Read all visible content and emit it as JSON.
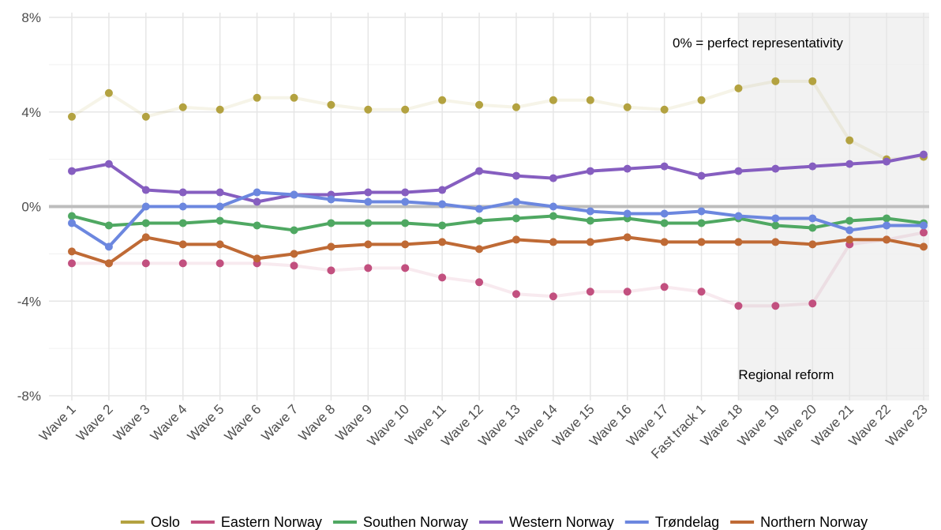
{
  "chart_data": {
    "type": "line",
    "categories": [
      "Wave 1",
      "Wave 2",
      "Wave 3",
      "Wave 4",
      "Wave 5",
      "Wave 6",
      "Wave 7",
      "Wave 8",
      "Wave 9",
      "Wave 10",
      "Wave 11",
      "Wave 12",
      "Wave 13",
      "Wave 14",
      "Wave 15",
      "Wave 16",
      "Wave 17",
      "Fast track 1",
      "Wave 18",
      "Wave 19",
      "Wave 20",
      "Wave 21",
      "Wave 22",
      "Wave 23"
    ],
    "ylim": [
      -8,
      8
    ],
    "yticks": [
      {
        "value": -8,
        "label": "-8%"
      },
      {
        "value": -4,
        "label": "-4%"
      },
      {
        "value": 0,
        "label": "0%"
      },
      {
        "value": 4,
        "label": "4%"
      },
      {
        "value": 8,
        "label": "8%"
      }
    ],
    "grid": true,
    "legend": "bottom",
    "shaded_region": {
      "label": "Regional reform",
      "from": "Wave 18"
    },
    "annotation": "0% = perfect representativity",
    "series": [
      {
        "name": "Oslo",
        "color": "#b3a240",
        "faded": true,
        "values": [
          3.8,
          4.8,
          3.8,
          4.2,
          4.1,
          4.6,
          4.6,
          4.3,
          4.1,
          4.1,
          4.5,
          4.3,
          4.2,
          4.5,
          4.5,
          4.2,
          4.1,
          4.5,
          5.0,
          5.3,
          5.3,
          2.8,
          2.0,
          2.1
        ]
      },
      {
        "name": "Eastern Norway",
        "color": "#c2507f",
        "faded": true,
        "values": [
          -2.4,
          -2.4,
          -2.4,
          -2.4,
          -2.4,
          -2.4,
          -2.5,
          -2.7,
          -2.6,
          -2.6,
          -3.0,
          -3.2,
          -3.7,
          -3.8,
          -3.6,
          -3.6,
          -3.4,
          -3.6,
          -4.2,
          -4.2,
          -4.1,
          -1.6,
          -1.4,
          -1.1
        ]
      },
      {
        "name": "Southen Norway",
        "color": "#4fa862",
        "faded": false,
        "values": [
          -0.4,
          -0.8,
          -0.7,
          -0.7,
          -0.6,
          -0.8,
          -1.0,
          -0.7,
          -0.7,
          -0.7,
          -0.8,
          -0.6,
          -0.5,
          -0.4,
          -0.6,
          -0.5,
          -0.7,
          -0.7,
          -0.5,
          -0.8,
          -0.9,
          -0.6,
          -0.5,
          -0.7
        ]
      },
      {
        "name": "Western Norway",
        "color": "#865ec0",
        "faded": false,
        "values": [
          1.5,
          1.8,
          0.7,
          0.6,
          0.6,
          0.2,
          0.5,
          0.5,
          0.6,
          0.6,
          0.7,
          1.5,
          1.3,
          1.2,
          1.5,
          1.6,
          1.7,
          1.3,
          1.5,
          1.6,
          1.7,
          1.8,
          1.9,
          2.2
        ]
      },
      {
        "name": "Trøndelag",
        "color": "#6c87df",
        "faded": false,
        "values": [
          -0.7,
          -1.7,
          0.0,
          0.0,
          0.0,
          0.6,
          0.5,
          0.3,
          0.2,
          0.2,
          0.1,
          -0.1,
          0.2,
          0.0,
          -0.2,
          -0.3,
          -0.3,
          -0.2,
          -0.4,
          -0.5,
          -0.5,
          -1.0,
          -0.8,
          -0.8
        ]
      },
      {
        "name": "Northern Norway",
        "color": "#bf6a35",
        "faded": false,
        "values": [
          -1.9,
          -2.4,
          -1.3,
          -1.6,
          -1.6,
          -2.2,
          -2.0,
          -1.7,
          -1.6,
          -1.6,
          -1.5,
          -1.8,
          -1.4,
          -1.5,
          -1.5,
          -1.3,
          -1.5,
          -1.5,
          -1.5,
          -1.5,
          -1.6,
          -1.4,
          -1.4,
          -1.7
        ]
      }
    ]
  }
}
